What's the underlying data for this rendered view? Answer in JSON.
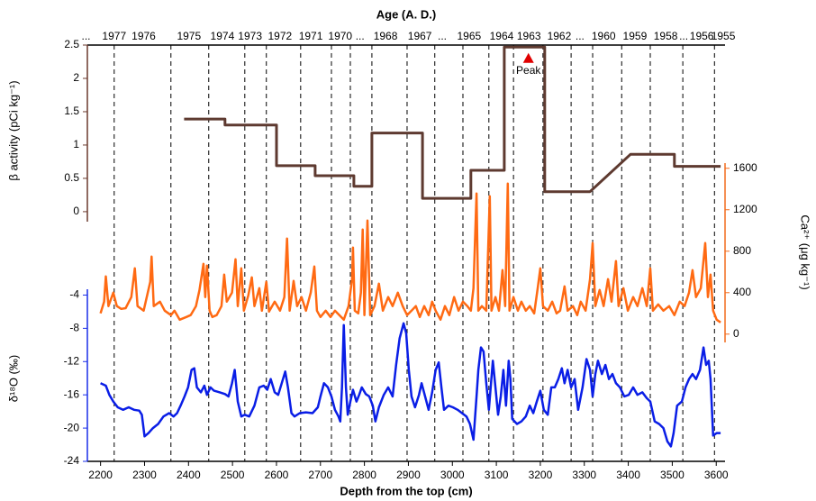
{
  "chart_data": {
    "type": "line",
    "x_label": "Depth from the top (cm)",
    "xlim": [
      2170,
      3620
    ],
    "xticks": [
      2200,
      2300,
      2400,
      2500,
      2600,
      2700,
      2800,
      2900,
      3000,
      3100,
      3200,
      3300,
      3400,
      3500,
      3600
    ],
    "top_axis": {
      "label": "Age (A. D.)",
      "ticks": [
        {
          "value": 2167,
          "label": "..."
        },
        {
          "value": 2231,
          "label": "1977"
        },
        {
          "value": 2298,
          "label": "1976"
        },
        {
          "value": 2401,
          "label": "1975"
        },
        {
          "value": 2477,
          "label": "1974"
        },
        {
          "value": 2540,
          "label": "1973"
        },
        {
          "value": 2608,
          "label": "1972"
        },
        {
          "value": 2678,
          "label": "1971"
        },
        {
          "value": 2745,
          "label": "1970"
        },
        {
          "value": 2790,
          "label": "..."
        },
        {
          "value": 2848,
          "label": "1968"
        },
        {
          "value": 2926,
          "label": "1967"
        },
        {
          "value": 2977,
          "label": "..."
        },
        {
          "value": 3038,
          "label": "1965"
        },
        {
          "value": 3112,
          "label": "1964"
        },
        {
          "value": 3174,
          "label": "1963"
        },
        {
          "value": 3243,
          "label": "1962"
        },
        {
          "value": 3290,
          "label": "..."
        },
        {
          "value": 3344,
          "label": "1960"
        },
        {
          "value": 3415,
          "label": "1959"
        },
        {
          "value": 3485,
          "label": "1958"
        },
        {
          "value": 3526,
          "label": "..."
        },
        {
          "value": 3567,
          "label": "1956"
        },
        {
          "value": 3616,
          "label": "1955"
        }
      ]
    },
    "boundaries": [
      2231,
      2360,
      2446,
      2528,
      2577,
      2655,
      2725,
      2768,
      2817,
      2897,
      2960,
      3024,
      3083,
      3139,
      3206,
      3270,
      3319,
      3385,
      3450,
      3524,
      3596
    ],
    "panels": [
      {
        "y_label": "β activity (pCi kg⁻¹)",
        "side": "left",
        "color": "#6b3a2e",
        "ylim": [
          -0.15,
          2.5
        ],
        "yticks": [
          0,
          0.5,
          1,
          1.5,
          2,
          2.5
        ],
        "series": [
          {
            "color": "#5e3a30",
            "x": [
              2390,
              2483,
              2483,
              2600,
              2600,
              2688,
              2688,
              2776,
              2776,
              2817,
              2817,
              2932,
              2932,
              3042,
              3042,
              3118,
              3118,
              3210,
              3210,
              3313,
              3405,
              3505,
              3505,
              3610
            ],
            "values": [
              1.39,
              1.39,
              1.3,
              1.3,
              0.69,
              0.69,
              0.54,
              0.54,
              0.38,
              0.38,
              1.18,
              1.18,
              0.2,
              0.2,
              0.62,
              0.62,
              2.47,
              2.47,
              0.3,
              0.3,
              0.86,
              0.86,
              0.68,
              0.68
            ]
          }
        ]
      },
      {
        "y_label": "Ca²⁺ (μg kg⁻¹)",
        "side": "right",
        "color": "#f26b1d",
        "ylim": [
          -80,
          1650
        ],
        "yticks": [
          0,
          400,
          800,
          1200,
          1600
        ],
        "series": [
          {
            "color": "#ff6a13",
            "x": [
              2200,
              2208,
              2212,
              2218,
              2229,
              2237,
              2247,
              2257,
              2270,
              2278,
              2284,
              2298,
              2313,
              2316,
              2321,
              2335,
              2346,
              2360,
              2368,
              2380,
              2395,
              2405,
              2417,
              2425,
              2434,
              2438,
              2442,
              2448,
              2454,
              2464,
              2475,
              2481,
              2487,
              2499,
              2507,
              2512,
              2520,
              2526,
              2536,
              2544,
              2550,
              2561,
              2567,
              2577,
              2583,
              2596,
              2608,
              2618,
              2624,
              2630,
              2639,
              2647,
              2657,
              2667,
              2678,
              2686,
              2692,
              2700,
              2712,
              2723,
              2733,
              2743,
              2753,
              2764,
              2772,
              2774,
              2778,
              2786,
              2792,
              2796,
              2800,
              2807,
              2813,
              2823,
              2833,
              2842,
              2854,
              2864,
              2876,
              2887,
              2897,
              2907,
              2917,
              2926,
              2936,
              2946,
              2954,
              2962,
              2973,
              2983,
              2993,
              3004,
              3014,
              3024,
              3034,
              3042,
              3048,
              3055,
              3059,
              3067,
              3077,
              3085,
              3089,
              3098,
              3106,
              3114,
              3120,
              3126,
              3130,
              3139,
              3149,
              3157,
              3167,
              3176,
              3186,
              3194,
              3200,
              3206,
              3217,
              3227,
              3237,
              3245,
              3255,
              3262,
              3274,
              3284,
              3292,
              3303,
              3313,
              3319,
              3325,
              3335,
              3344,
              3354,
              3362,
              3372,
              3378,
              3389,
              3399,
              3411,
              3421,
              3432,
              3442,
              3450,
              3456,
              3468,
              3480,
              3493,
              3505,
              3517,
              3528,
              3538,
              3546,
              3554,
              3565,
              3575,
              3581,
              3587,
              3593,
              3601,
              3610
            ],
            "values": [
              200,
              313,
              557,
              270,
              400,
              270,
              243,
              250,
              357,
              635,
              270,
              226,
              504,
              748,
              270,
              313,
              226,
              183,
              226,
              139,
              165,
              183,
              270,
              426,
              678,
              357,
              661,
              226,
              165,
              183,
              270,
              574,
              313,
              400,
              722,
              270,
              635,
              226,
              374,
              548,
              270,
              443,
              226,
              504,
              217,
              313,
              226,
              357,
              922,
              226,
              513,
              270,
              357,
              226,
              400,
              652,
              226,
              165,
              226,
              165,
              226,
              183,
              139,
              270,
              530,
              835,
              226,
              200,
              400,
              1009,
              183,
              1096,
              183,
              270,
              487,
              226,
              357,
              270,
              400,
              270,
              183,
              226,
              270,
              165,
              270,
              183,
              313,
              226,
              139,
              270,
              183,
              357,
              226,
              313,
              270,
              226,
              443,
              1357,
              226,
              270,
              226,
              1330,
              226,
              357,
              226,
              617,
              270,
              1452,
              226,
              357,
              226,
              313,
              226,
              270,
              200,
              443,
              635,
              270,
              226,
              313,
              200,
              226,
              461,
              226,
              270,
              183,
              313,
              226,
              530,
              878,
              270,
              426,
              270,
              530,
              313,
              704,
              270,
              443,
              226,
              357,
              270,
              443,
              270,
              635,
              226,
              287,
              226,
              270,
              183,
              313,
              270,
              400,
              617,
              357,
              443,
              878,
              357,
              574,
              226,
              139,
              113
            ]
          }
        ]
      },
      {
        "y_label": "δ¹⁸O (‰)",
        "side": "left",
        "color": "#1a2ee8",
        "ylim": [
          -24,
          -3.3
        ],
        "yticks": [
          -4,
          -8,
          -12,
          -16,
          -20,
          -24
        ],
        "series": [
          {
            "color": "#0a1ee6",
            "x": [
              2200,
              2212,
              2220,
              2229,
              2239,
              2251,
              2264,
              2276,
              2288,
              2294,
              2300,
              2309,
              2319,
              2331,
              2343,
              2356,
              2366,
              2374,
              2382,
              2391,
              2399,
              2407,
              2413,
              2419,
              2428,
              2436,
              2442,
              2450,
              2458,
              2471,
              2483,
              2491,
              2499,
              2505,
              2512,
              2520,
              2528,
              2538,
              2550,
              2561,
              2571,
              2579,
              2587,
              2596,
              2604,
              2612,
              2620,
              2626,
              2634,
              2641,
              2653,
              2667,
              2682,
              2694,
              2700,
              2708,
              2717,
              2725,
              2733,
              2741,
              2745,
              2749,
              2753,
              2758,
              2762,
              2768,
              2774,
              2782,
              2788,
              2794,
              2803,
              2811,
              2819,
              2825,
              2833,
              2844,
              2854,
              2864,
              2872,
              2880,
              2889,
              2895,
              2901,
              2907,
              2915,
              2924,
              2930,
              2938,
              2946,
              2954,
              2962,
              2969,
              2975,
              2981,
              2991,
              3001,
              3012,
              3022,
              3032,
              3040,
              3048,
              3055,
              3059,
              3065,
              3071,
              3077,
              3083,
              3092,
              3098,
              3104,
              3110,
              3116,
              3122,
              3128,
              3132,
              3136,
              3147,
              3157,
              3167,
              3176,
              3184,
              3192,
              3200,
              3208,
              3217,
              3225,
              3233,
              3241,
              3249,
              3255,
              3262,
              3270,
              3278,
              3286,
              3296,
              3305,
              3313,
              3319,
              3325,
              3331,
              3340,
              3348,
              3356,
              3364,
              3372,
              3381,
              3391,
              3401,
              3411,
              3421,
              3432,
              3442,
              3450,
              3460,
              3470,
              3480,
              3489,
              3497,
              3503,
              3511,
              3522,
              3530,
              3538,
              3546,
              3554,
              3563,
              3571,
              3577,
              3583,
              3587,
              3593,
              3601,
              3610
            ],
            "values": [
              -14.6,
              -14.9,
              -16.0,
              -16.8,
              -17.5,
              -17.8,
              -17.5,
              -17.8,
              -17.9,
              -18.4,
              -21.0,
              -20.6,
              -20.0,
              -19.5,
              -18.6,
              -18.2,
              -18.6,
              -18.2,
              -17.3,
              -16.2,
              -15.1,
              -13.0,
              -12.8,
              -15.1,
              -15.7,
              -14.9,
              -16.0,
              -15.1,
              -15.5,
              -15.7,
              -15.9,
              -16.2,
              -14.6,
              -13.0,
              -16.8,
              -18.6,
              -18.4,
              -18.6,
              -17.3,
              -15.1,
              -14.9,
              -15.4,
              -14.1,
              -15.7,
              -16.0,
              -14.6,
              -13.2,
              -15.1,
              -18.2,
              -18.6,
              -18.2,
              -18.1,
              -18.2,
              -17.5,
              -16.2,
              -14.6,
              -15.1,
              -16.2,
              -17.8,
              -18.6,
              -19.2,
              -15.1,
              -7.6,
              -15.1,
              -18.4,
              -16.8,
              -15.4,
              -16.8,
              -16.0,
              -15.1,
              -15.9,
              -16.2,
              -17.3,
              -19.2,
              -17.5,
              -16.0,
              -15.1,
              -16.2,
              -12.4,
              -9.2,
              -7.4,
              -8.6,
              -13.0,
              -16.2,
              -17.5,
              -16.0,
              -14.6,
              -16.2,
              -17.8,
              -15.7,
              -13.0,
              -12.1,
              -15.1,
              -17.8,
              -17.3,
              -17.5,
              -17.8,
              -18.2,
              -18.6,
              -19.5,
              -21.4,
              -16.2,
              -13.0,
              -10.3,
              -10.8,
              -14.6,
              -17.8,
              -11.9,
              -15.1,
              -18.4,
              -16.2,
              -13.0,
              -17.3,
              -11.9,
              -14.1,
              -18.9,
              -19.5,
              -19.2,
              -18.6,
              -17.3,
              -18.2,
              -16.8,
              -15.5,
              -17.8,
              -18.4,
              -15.1,
              -15.1,
              -14.1,
              -12.8,
              -14.6,
              -13.0,
              -15.1,
              -14.1,
              -17.8,
              -15.1,
              -11.7,
              -13.0,
              -16.2,
              -13.5,
              -11.9,
              -13.5,
              -12.4,
              -14.1,
              -13.5,
              -14.6,
              -15.1,
              -16.2,
              -16.0,
              -15.1,
              -16.0,
              -15.7,
              -16.4,
              -16.8,
              -19.2,
              -19.5,
              -20.0,
              -21.6,
              -22.2,
              -20.6,
              -17.3,
              -16.8,
              -15.1,
              -14.1,
              -13.5,
              -14.1,
              -13.0,
              -10.3,
              -12.4,
              -11.9,
              -14.1,
              -20.9,
              -20.6,
              -20.6
            ]
          }
        ]
      }
    ],
    "annotations": [
      {
        "text": "Peak",
        "x": 3173,
        "y": 2.3,
        "color": "#e00000"
      }
    ]
  }
}
